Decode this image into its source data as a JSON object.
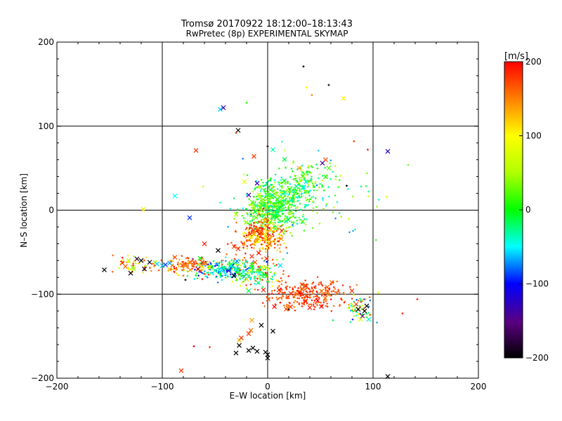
{
  "chart_data": {
    "type": "scatter",
    "title_line1": "Tromsø 20170922 18:12:00–18:13:43",
    "title_line2": "RwPretec (8p) EXPERIMENTAL SKYMAP",
    "xlabel": "E–W location [km]",
    "ylabel": "N–S location [km]",
    "xlim": [
      -200,
      200
    ],
    "ylim": [
      -200,
      200
    ],
    "x_ticks": [
      -200,
      -100,
      0,
      100,
      200
    ],
    "y_ticks": [
      -200,
      -100,
      0,
      100,
      200
    ],
    "grid_lines": [
      -100,
      0,
      100
    ],
    "colorbar": {
      "label": "[m/s]",
      "range": [
        -200,
        200
      ],
      "ticks": [
        200,
        100,
        0,
        -100,
        -200
      ]
    },
    "points": [
      {
        "x": -155,
        "y": -71,
        "v": -200,
        "m": "x"
      },
      {
        "x": -138,
        "y": -63,
        "v": 180,
        "m": "x"
      },
      {
        "x": -135,
        "y": -67,
        "v": 160,
        "m": "x"
      },
      {
        "x": -132,
        "y": -60,
        "v": 60,
        "m": "x"
      },
      {
        "x": -130,
        "y": -75,
        "v": -200,
        "m": "x"
      },
      {
        "x": -128,
        "y": -68,
        "v": 40,
        "m": "x"
      },
      {
        "x": -124,
        "y": -58,
        "v": -180,
        "m": "x"
      },
      {
        "x": -120,
        "y": -60,
        "v": -200,
        "m": "x"
      },
      {
        "x": -117,
        "y": -70,
        "v": -200,
        "m": "x"
      },
      {
        "x": -112,
        "y": -62,
        "v": -200,
        "m": "x"
      },
      {
        "x": -105,
        "y": -64,
        "v": -60,
        "m": "x"
      },
      {
        "x": -100,
        "y": -66,
        "v": -60,
        "m": "x"
      },
      {
        "x": -97,
        "y": -65,
        "v": -90,
        "m": "x"
      },
      {
        "x": -93,
        "y": -63,
        "v": -70,
        "m": "x"
      },
      {
        "x": -118,
        "y": 1,
        "v": 110,
        "m": "x"
      },
      {
        "x": -88,
        "y": 17,
        "v": -50,
        "m": "x"
      },
      {
        "x": -78,
        "y": -66,
        "v": 150,
        "m": "x"
      },
      {
        "x": -74,
        "y": -9,
        "v": -90,
        "m": "x"
      },
      {
        "x": -70,
        "y": -62,
        "v": 180,
        "m": "x"
      },
      {
        "x": -68,
        "y": 71,
        "v": 180,
        "m": "x"
      },
      {
        "x": -66,
        "y": -70,
        "v": 200,
        "m": "x"
      },
      {
        "x": -62,
        "y": -62,
        "v": 190,
        "m": "x"
      },
      {
        "x": -60,
        "y": -40,
        "v": 190,
        "m": "x"
      },
      {
        "x": -55,
        "y": -68,
        "v": 100,
        "m": "x"
      },
      {
        "x": -50,
        "y": -72,
        "v": -30,
        "m": "x"
      },
      {
        "x": -47,
        "y": -48,
        "v": -200,
        "m": "x"
      },
      {
        "x": -45,
        "y": 120,
        "v": -60,
        "m": "x"
      },
      {
        "x": -42,
        "y": 122,
        "v": -130,
        "m": "x"
      },
      {
        "x": -40,
        "y": -76,
        "v": -50,
        "m": "x"
      },
      {
        "x": -37,
        "y": -72,
        "v": -120,
        "m": "x"
      },
      {
        "x": -35,
        "y": -66,
        "v": -40,
        "m": "x"
      },
      {
        "x": -32,
        "y": -78,
        "v": -200,
        "m": "x"
      },
      {
        "x": -30,
        "y": -70,
        "v": -30,
        "m": "x"
      },
      {
        "x": -28,
        "y": 95,
        "v": -200,
        "m": "x"
      },
      {
        "x": -27,
        "y": -155,
        "v": 130,
        "m": "x"
      },
      {
        "x": -25,
        "y": -152,
        "v": 180,
        "m": "x"
      },
      {
        "x": -23,
        "y": -74,
        "v": -40,
        "m": "x"
      },
      {
        "x": -20,
        "y": -82,
        "v": 120,
        "m": "x"
      },
      {
        "x": -18,
        "y": -96,
        "v": -20,
        "m": "x"
      },
      {
        "x": -15,
        "y": -68,
        "v": 0,
        "m": "x"
      },
      {
        "x": -13,
        "y": 64,
        "v": 180,
        "m": "x"
      },
      {
        "x": -12,
        "y": -62,
        "v": 170,
        "m": "x"
      },
      {
        "x": -10,
        "y": 32,
        "v": -130,
        "m": "x"
      },
      {
        "x": -8,
        "y": -75,
        "v": -50,
        "m": "x"
      },
      {
        "x": -6,
        "y": -137,
        "v": -200,
        "m": "x"
      },
      {
        "x": -4,
        "y": -95,
        "v": 190,
        "m": "x"
      },
      {
        "x": -2,
        "y": -169,
        "v": -200,
        "m": "x"
      },
      {
        "x": 0,
        "y": -176,
        "v": -200,
        "m": "x"
      },
      {
        "x": 0,
        "y": -172,
        "v": -200,
        "m": "x"
      },
      {
        "x": 5,
        "y": -144,
        "v": -200,
        "m": "x"
      },
      {
        "x": -18,
        "y": -147,
        "v": 180,
        "m": "x"
      },
      {
        "x": -16,
        "y": -143,
        "v": 160,
        "m": "x"
      },
      {
        "x": -15,
        "y": -131,
        "v": 140,
        "m": "x"
      },
      {
        "x": -27,
        "y": -161,
        "v": -200,
        "m": "x"
      },
      {
        "x": -30,
        "y": -170,
        "v": -200,
        "m": "x"
      },
      {
        "x": -18,
        "y": -167,
        "v": -200,
        "m": "x"
      },
      {
        "x": -14,
        "y": -164,
        "v": -200,
        "m": "x"
      },
      {
        "x": -10,
        "y": -168,
        "v": -200,
        "m": "x"
      },
      {
        "x": -82,
        "y": -191,
        "v": 180,
        "m": "x"
      },
      {
        "x": -18,
        "y": 18,
        "v": -130,
        "m": "x"
      },
      {
        "x": -22,
        "y": 34,
        "v": 90,
        "m": "x"
      },
      {
        "x": -28,
        "y": -46,
        "v": 180,
        "m": "x"
      },
      {
        "x": -15,
        "y": -55,
        "v": 190,
        "m": "x"
      },
      {
        "x": 30,
        "y": 50,
        "v": 140,
        "m": "x"
      },
      {
        "x": 55,
        "y": 60,
        "v": 170,
        "m": "x"
      },
      {
        "x": 58,
        "y": 50,
        "v": 20,
        "m": "x"
      },
      {
        "x": 52,
        "y": 56,
        "v": -140,
        "m": "x"
      },
      {
        "x": 72,
        "y": 133,
        "v": 100,
        "m": "x"
      },
      {
        "x": 40,
        "y": -116,
        "v": 190,
        "m": "x"
      },
      {
        "x": 36,
        "y": -108,
        "v": 180,
        "m": "x"
      },
      {
        "x": 80,
        "y": -96,
        "v": 180,
        "m": "x"
      },
      {
        "x": 84,
        "y": -112,
        "v": 170,
        "m": "x"
      },
      {
        "x": 86,
        "y": -118,
        "v": -200,
        "m": "x"
      },
      {
        "x": 90,
        "y": -126,
        "v": -150,
        "m": "x"
      },
      {
        "x": 92,
        "y": -120,
        "v": -200,
        "m": "x"
      },
      {
        "x": 94,
        "y": -114,
        "v": -200,
        "m": "x"
      },
      {
        "x": 96,
        "y": -130,
        "v": -40,
        "m": "x"
      },
      {
        "x": 88,
        "y": -130,
        "v": 80,
        "m": "x"
      },
      {
        "x": 114,
        "y": 70,
        "v": -120,
        "m": "x"
      },
      {
        "x": 114,
        "y": -198,
        "v": -200,
        "m": "x"
      },
      {
        "x": 34,
        "y": 171,
        "v": -200,
        "m": "+"
      },
      {
        "x": 58,
        "y": 149,
        "v": -200,
        "m": "+"
      },
      {
        "x": 37,
        "y": 146,
        "v": 100,
        "m": "+"
      },
      {
        "x": 42,
        "y": 137,
        "v": 150,
        "m": "+"
      },
      {
        "x": -20,
        "y": 128,
        "v": 10,
        "m": "+"
      },
      {
        "x": -30,
        "y": 92,
        "v": 180,
        "m": "+"
      },
      {
        "x": 0,
        "y": 76,
        "v": -200,
        "m": "+"
      },
      {
        "x": 82,
        "y": 82,
        "v": 180,
        "m": "+"
      },
      {
        "x": 95,
        "y": 72,
        "v": 190,
        "m": "+"
      },
      {
        "x": 75,
        "y": 29,
        "v": -200,
        "m": "+"
      },
      {
        "x": -4,
        "y": 2,
        "v": 200,
        "m": "+"
      },
      {
        "x": -62,
        "y": -82,
        "v": 190,
        "m": "+"
      },
      {
        "x": -78,
        "y": -83,
        "v": -200,
        "m": "+"
      },
      {
        "x": -80,
        "y": -78,
        "v": 160,
        "m": "+"
      },
      {
        "x": -55,
        "y": -163,
        "v": 180,
        "m": "+"
      },
      {
        "x": -70,
        "y": -162,
        "v": 200,
        "m": "+"
      },
      {
        "x": 128,
        "y": -123,
        "v": 190,
        "m": "+"
      },
      {
        "x": 142,
        "y": -106,
        "v": 190,
        "m": "+"
      },
      {
        "x": 105,
        "y": -98,
        "v": 90,
        "m": "+"
      },
      {
        "x": 62,
        "y": -131,
        "v": -20,
        "m": "+"
      },
      {
        "x": 12,
        "y": -110,
        "v": 200,
        "m": "+"
      },
      {
        "x": 20,
        "y": -118,
        "v": -200,
        "m": "+"
      }
    ],
    "clusters": [
      {
        "cx": 5,
        "cy": 2,
        "sx": 14,
        "sy": 13,
        "n": 430,
        "vmin": -40,
        "vmax": 60
      },
      {
        "cx": 22,
        "cy": 22,
        "sx": 14,
        "sy": 9,
        "n": 160,
        "vmin": -60,
        "vmax": 50
      },
      {
        "cx": 40,
        "cy": 40,
        "sx": 12,
        "sy": 8,
        "n": 80,
        "vmin": -30,
        "vmax": 70
      },
      {
        "cx": -5,
        "cy": -30,
        "sx": 10,
        "sy": 9,
        "n": 230,
        "vmin": 90,
        "vmax": 200
      },
      {
        "cx": -40,
        "cy": -70,
        "sx": 16,
        "sy": 6,
        "n": 210,
        "vmin": -110,
        "vmax": 20
      },
      {
        "cx": -10,
        "cy": -76,
        "sx": 12,
        "sy": 8,
        "n": 110,
        "vmin": -60,
        "vmax": 90
      },
      {
        "cx": -80,
        "cy": -66,
        "sx": 14,
        "sy": 5,
        "n": 90,
        "vmin": 110,
        "vmax": 200
      },
      {
        "cx": -125,
        "cy": -65,
        "sx": 10,
        "sy": 5,
        "n": 40,
        "vmin": 40,
        "vmax": 200
      },
      {
        "cx": 35,
        "cy": -100,
        "sx": 22,
        "sy": 9,
        "n": 260,
        "vmin": 150,
        "vmax": 200
      },
      {
        "cx": 88,
        "cy": -118,
        "sx": 7,
        "sy": 9,
        "n": 60,
        "vmin": -100,
        "vmax": 200
      },
      {
        "cx": -10,
        "cy": -42,
        "sx": 14,
        "sy": 18,
        "n": 60,
        "vmin": 140,
        "vmax": 200
      },
      {
        "cx": 30,
        "cy": 15,
        "sx": 38,
        "sy": 28,
        "n": 90,
        "vmin": -80,
        "vmax": 80
      }
    ]
  }
}
